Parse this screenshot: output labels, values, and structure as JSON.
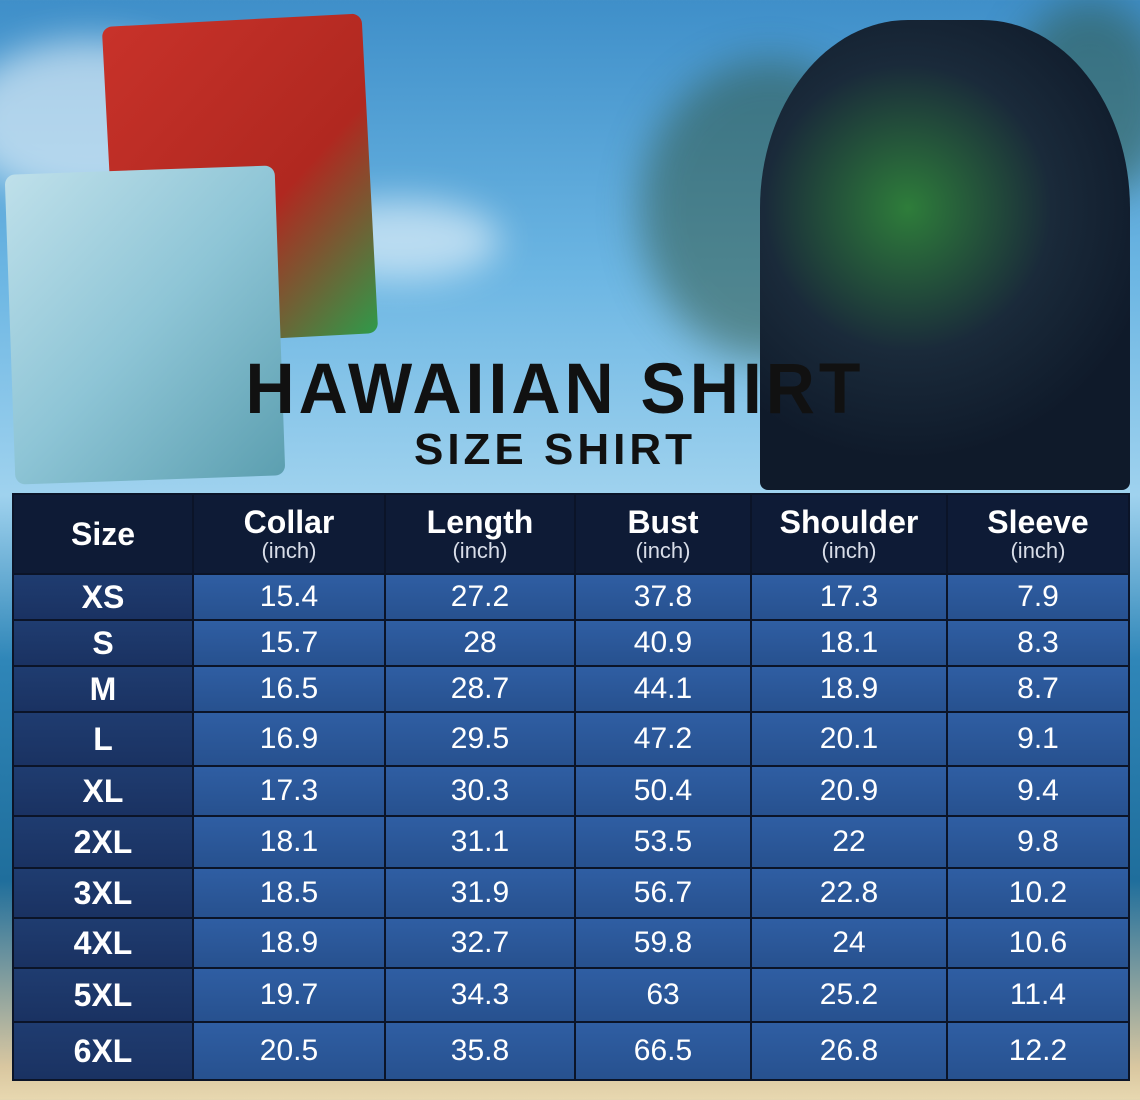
{
  "title": "HAWAIIAN SHIRT",
  "subtitle": "SIZE SHIRT",
  "chart_data": {
    "type": "table",
    "columns": [
      {
        "label": "Size",
        "unit": ""
      },
      {
        "label": "Collar",
        "unit": "(inch)"
      },
      {
        "label": "Length",
        "unit": "(inch)"
      },
      {
        "label": "Bust",
        "unit": "(inch)"
      },
      {
        "label": "Shoulder",
        "unit": "(inch)"
      },
      {
        "label": "Sleeve",
        "unit": "(inch)"
      }
    ],
    "rows": [
      [
        "XS",
        "15.4",
        "27.2",
        "37.8",
        "17.3",
        "7.9"
      ],
      [
        "S",
        "15.7",
        "28",
        "40.9",
        "18.1",
        "8.3"
      ],
      [
        "M",
        "16.5",
        "28.7",
        "44.1",
        "18.9",
        "8.7"
      ],
      [
        "L",
        "16.9",
        "29.5",
        "47.2",
        "20.1",
        "9.1"
      ],
      [
        "XL",
        "17.3",
        "30.3",
        "50.4",
        "20.9",
        "9.4"
      ],
      [
        "2XL",
        "18.1",
        "31.1",
        "53.5",
        "22",
        "9.8"
      ],
      [
        "3XL",
        "18.5",
        "31.9",
        "56.7",
        "22.8",
        "10.2"
      ],
      [
        "4XL",
        "18.9",
        "32.7",
        "59.8",
        "24",
        "10.6"
      ],
      [
        "5XL",
        "19.7",
        "34.3",
        "63",
        "25.2",
        "11.4"
      ],
      [
        "6XL",
        "20.5",
        "35.8",
        "66.5",
        "26.8",
        "12.2"
      ]
    ]
  }
}
